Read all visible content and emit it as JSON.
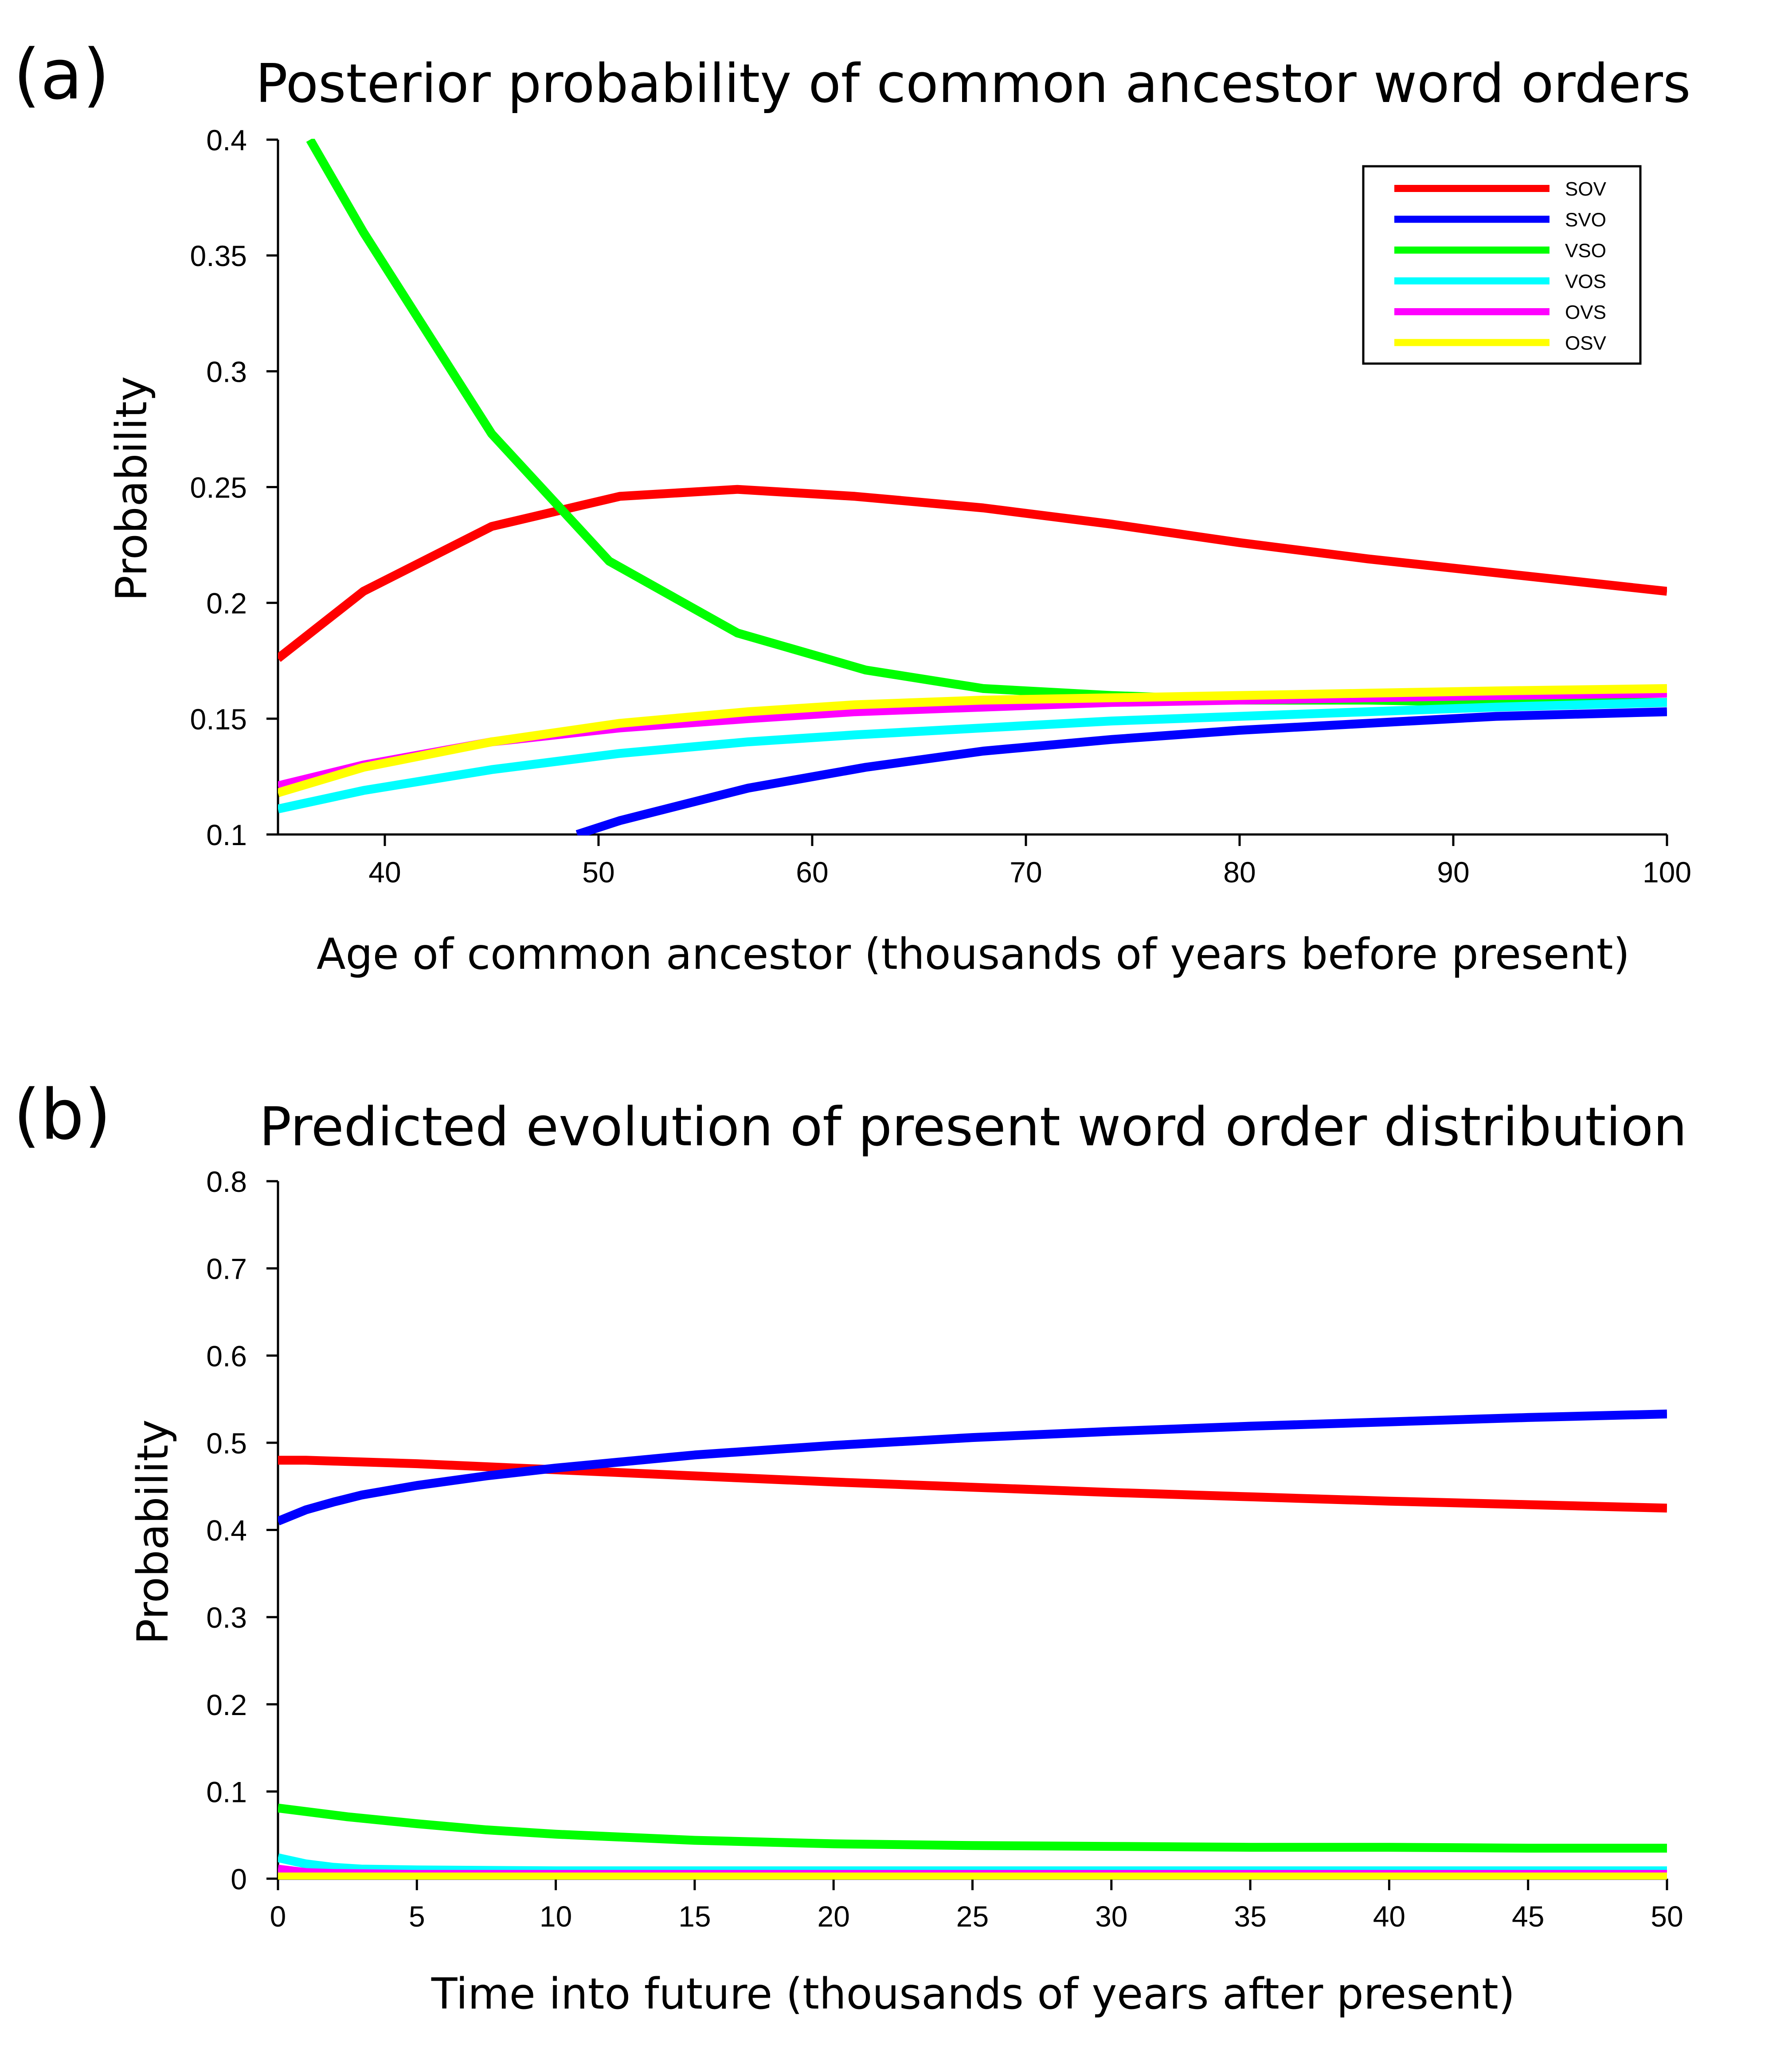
{
  "chart_data": [
    {
      "panel_label": "(a)",
      "type": "line",
      "title": "Posterior probability of common ancestor word orders",
      "xlabel": "Age of common ancestor (thousands of years before present)",
      "ylabel": "Probability",
      "xlim": [
        35,
        100
      ],
      "ylim": [
        0.1,
        0.4
      ],
      "xticks": [
        40,
        50,
        60,
        70,
        80,
        90,
        100
      ],
      "yticks": [
        0.1,
        0.15,
        0.2,
        0.25,
        0.3,
        0.35,
        0.4
      ],
      "xtick_labels": [
        "40",
        "50",
        "60",
        "70",
        "80",
        "90",
        "100"
      ],
      "ytick_labels": [
        "0.1",
        "0.15",
        "0.2",
        "0.25",
        "0.3",
        "0.35",
        "0.4"
      ],
      "legend": {
        "placement": "top-right",
        "entries": [
          "SOV",
          "SVO",
          "VSO",
          "VOS",
          "OVS",
          "OSV"
        ]
      },
      "grid": false,
      "series": [
        {
          "name": "SOV",
          "color": "#ff0000",
          "x": [
            35,
            39,
            45,
            51,
            56.5,
            62,
            68,
            74,
            80,
            86,
            92,
            100
          ],
          "y": [
            0.176,
            0.205,
            0.233,
            0.246,
            0.249,
            0.246,
            0.241,
            0.234,
            0.226,
            0.219,
            0.213,
            0.205
          ]
        },
        {
          "name": "SVO",
          "color": "#0000ff",
          "x": [
            49,
            51,
            57,
            62.5,
            68,
            74,
            80,
            86,
            92,
            100
          ],
          "y": [
            0.1,
            0.106,
            0.12,
            0.129,
            0.136,
            0.141,
            0.145,
            0.148,
            0.151,
            0.153
          ]
        },
        {
          "name": "VSO",
          "color": "#00ff00",
          "x": [
            36.5,
            39,
            45,
            50.5,
            56.5,
            62.5,
            68,
            74,
            80,
            86,
            92,
            100
          ],
          "y": [
            0.4,
            0.36,
            0.273,
            0.218,
            0.187,
            0.171,
            0.163,
            0.16,
            0.158,
            0.158,
            0.157,
            0.157
          ]
        },
        {
          "name": "VOS",
          "color": "#00ffff",
          "x": [
            35,
            39,
            45,
            51,
            57,
            62,
            68,
            74,
            80,
            86,
            92,
            100
          ],
          "y": [
            0.111,
            0.119,
            0.128,
            0.135,
            0.14,
            0.143,
            0.146,
            0.149,
            0.151,
            0.153,
            0.155,
            0.157
          ]
        },
        {
          "name": "OVS",
          "color": "#ff00ff",
          "x": [
            35,
            39,
            45,
            51,
            57,
            62,
            68,
            74,
            80,
            86,
            92,
            100
          ],
          "y": [
            0.121,
            0.13,
            0.14,
            0.146,
            0.15,
            0.153,
            0.155,
            0.157,
            0.158,
            0.159,
            0.16,
            0.161
          ]
        },
        {
          "name": "OSV",
          "color": "#ffff00",
          "x": [
            35,
            39,
            45,
            51,
            57,
            62,
            68,
            74,
            80,
            86,
            92,
            100
          ],
          "y": [
            0.118,
            0.129,
            0.14,
            0.148,
            0.153,
            0.156,
            0.158,
            0.159,
            0.16,
            0.161,
            0.162,
            0.163
          ]
        }
      ]
    },
    {
      "panel_label": "(b)",
      "type": "line",
      "title": "Predicted evolution of present word order distribution",
      "xlabel": "Time into future (thousands of years after present)",
      "ylabel": "Probability",
      "xlim": [
        0,
        50
      ],
      "ylim": [
        0,
        0.8
      ],
      "xticks": [
        0,
        5,
        10,
        15,
        20,
        25,
        30,
        35,
        40,
        45,
        50
      ],
      "yticks": [
        0,
        0.1,
        0.2,
        0.3,
        0.4,
        0.5,
        0.6,
        0.7,
        0.8
      ],
      "xtick_labels": [
        "0",
        "5",
        "10",
        "15",
        "20",
        "25",
        "30",
        "35",
        "40",
        "45",
        "50"
      ],
      "ytick_labels": [
        "0",
        "0.1",
        "0.2",
        "0.3",
        "0.4",
        "0.5",
        "0.6",
        "0.7",
        "0.8"
      ],
      "grid": false,
      "series": [
        {
          "name": "SOV",
          "color": "#ff0000",
          "x": [
            0,
            1,
            2,
            5,
            10,
            15,
            20,
            25,
            30,
            35,
            40,
            45,
            50
          ],
          "y": [
            0.48,
            0.48,
            0.479,
            0.476,
            0.469,
            0.462,
            0.455,
            0.449,
            0.443,
            0.438,
            0.433,
            0.429,
            0.425
          ]
        },
        {
          "name": "SVO",
          "color": "#0000ff",
          "x": [
            0,
            1,
            2,
            3,
            5,
            7.5,
            10,
            15,
            20,
            25,
            30,
            35,
            40,
            45,
            50
          ],
          "y": [
            0.41,
            0.423,
            0.432,
            0.44,
            0.451,
            0.462,
            0.471,
            0.486,
            0.497,
            0.506,
            0.513,
            0.519,
            0.524,
            0.529,
            0.533
          ]
        },
        {
          "name": "VSO",
          "color": "#00ff00",
          "x": [
            0,
            2.5,
            5,
            7.5,
            10,
            15,
            20,
            25,
            30,
            35,
            40,
            45,
            50
          ],
          "y": [
            0.081,
            0.071,
            0.063,
            0.056,
            0.051,
            0.044,
            0.04,
            0.038,
            0.037,
            0.036,
            0.036,
            0.035,
            0.035
          ]
        },
        {
          "name": "VOS",
          "color": "#00ffff",
          "x": [
            0,
            1,
            2,
            3,
            5,
            10,
            20,
            30,
            40,
            50
          ],
          "y": [
            0.024,
            0.017,
            0.013,
            0.011,
            0.01,
            0.009,
            0.009,
            0.009,
            0.009,
            0.009
          ]
        },
        {
          "name": "OVS",
          "color": "#ff00ff",
          "x": [
            0,
            1,
            2,
            5,
            10,
            20,
            30,
            40,
            50
          ],
          "y": [
            0.011,
            0.007,
            0.006,
            0.005,
            0.005,
            0.005,
            0.005,
            0.005,
            0.005
          ]
        },
        {
          "name": "OSV",
          "color": "#ffff00",
          "x": [
            0,
            5,
            10,
            20,
            30,
            40,
            50
          ],
          "y": [
            0.002,
            0.002,
            0.002,
            0.002,
            0.002,
            0.002,
            0.002
          ]
        }
      ]
    }
  ]
}
